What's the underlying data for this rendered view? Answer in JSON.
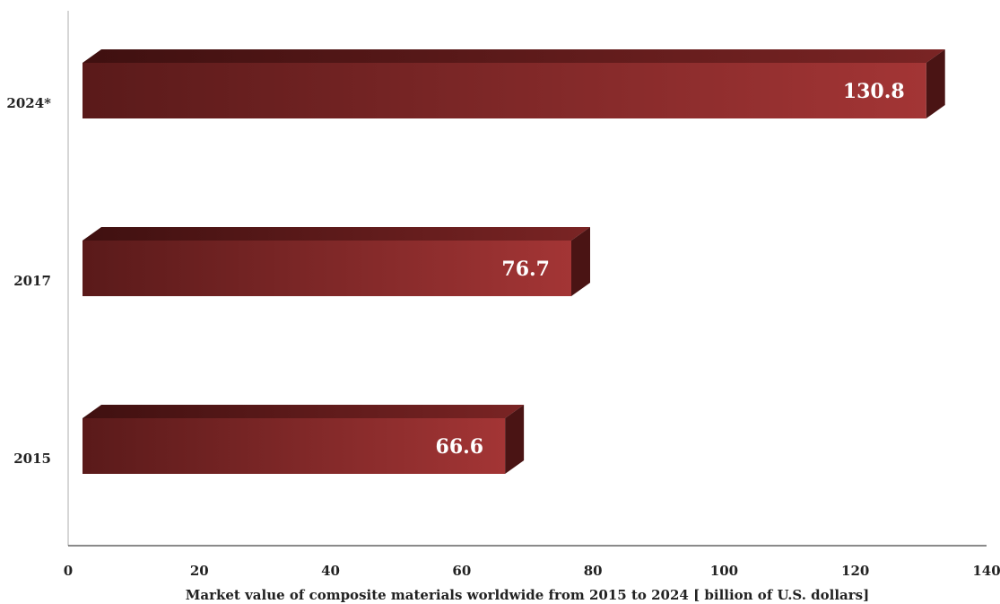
{
  "chart_data": {
    "type": "bar",
    "orientation": "horizontal",
    "categories": [
      "2015",
      "2017",
      "2024*"
    ],
    "values": [
      66.6,
      76.7,
      130.8
    ],
    "value_labels": [
      "66.6",
      "76.7",
      "130.8"
    ],
    "xlabel": "Market value of composite materials worldwide from 2015 to 2024 [ billion of U.S. dollars]",
    "xlim": [
      0,
      140
    ],
    "xticks": [
      "0",
      "20",
      "40",
      "60",
      "80",
      "100",
      "120",
      "140"
    ],
    "grid": false,
    "style": "3d",
    "colors": {
      "bar_dark": "#5a1a1a",
      "bar_light": "#a33535",
      "bar_top": "#6e2020",
      "bar_side": "#4a1414"
    }
  }
}
